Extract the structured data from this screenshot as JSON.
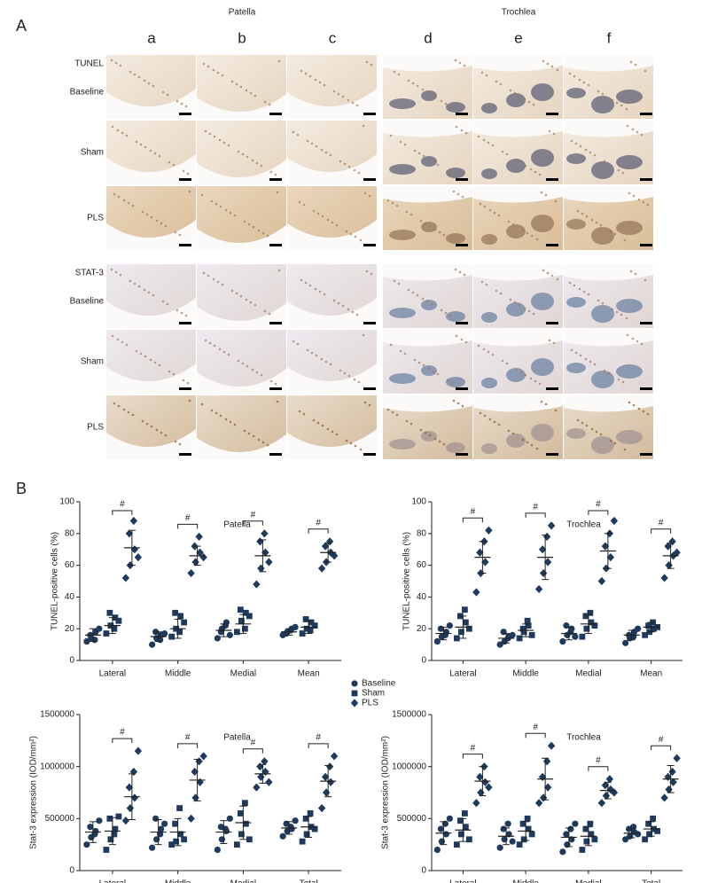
{
  "panel_a": {
    "label": "A",
    "groups": [
      "Patella",
      "Trochlea"
    ],
    "columns": [
      "a",
      "b",
      "c",
      "d",
      "e",
      "f"
    ],
    "stains": [
      {
        "name": "TUNEL",
        "rows": [
          "Baseline",
          "Sham",
          "PLS"
        ]
      },
      {
        "name": "STAT-3",
        "rows": [
          "Baseline",
          "Sham",
          "PLS"
        ]
      }
    ]
  },
  "panel_b": {
    "label": "B"
  },
  "chart_data": [
    {
      "type": "dot",
      "title": "Patella",
      "y_label": "TUNEL-positive cells (%)",
      "categories": [
        "Lateral",
        "Middle",
        "Medial",
        "Mean"
      ],
      "ylim": [
        0,
        100
      ],
      "yticks": [
        0,
        20,
        40,
        60,
        80,
        100
      ],
      "annotations": [
        "#",
        "#",
        "#",
        "#"
      ],
      "series": [
        {
          "name": "Baseline",
          "marker": "circle",
          "color": "#1e3a5c",
          "values": [
            [
              12,
              14,
              18,
              16,
              13,
              20
            ],
            [
              10,
              14,
              16,
              18,
              13,
              17
            ],
            [
              14,
              20,
              24,
              18,
              22,
              16
            ],
            [
              16,
              18,
              20,
              17,
              19,
              21
            ]
          ],
          "mean": [
            16,
            15,
            19,
            18
          ],
          "sd": [
            4,
            3,
            4,
            2
          ]
        },
        {
          "name": "Sham",
          "marker": "square",
          "color": "#1e3a5c",
          "values": [
            [
              17,
              22,
              27,
              30,
              20,
              25
            ],
            [
              15,
              20,
              28,
              30,
              18,
              24
            ],
            [
              18,
              25,
              30,
              32,
              20,
              28
            ],
            [
              17,
              20,
              24,
              26,
              19,
              22
            ]
          ],
          "mean": [
            22,
            20,
            23,
            21
          ],
          "sd": [
            5,
            6,
            6,
            4
          ]
        },
        {
          "name": "PLS",
          "marker": "diamond",
          "color": "#1e3a5c",
          "values": [
            [
              52,
              60,
              70,
              80,
              88,
              65
            ],
            [
              55,
              62,
              68,
              72,
              78,
              65
            ],
            [
              48,
              58,
              68,
              75,
              80,
              62
            ],
            [
              58,
              62,
              68,
              72,
              75,
              66
            ]
          ],
          "mean": [
            71,
            66,
            66,
            68
          ],
          "sd": [
            11,
            6,
            10,
            6
          ]
        }
      ]
    },
    {
      "type": "dot",
      "title": "Trochlea",
      "y_label": "TUNEL-positive cells (%)",
      "categories": [
        "Lateral",
        "Middle",
        "Medial",
        "Mean"
      ],
      "ylim": [
        0,
        100
      ],
      "yticks": [
        0,
        20,
        40,
        60,
        80,
        100
      ],
      "annotations": [
        "#",
        "#",
        "#",
        "#"
      ],
      "series": [
        {
          "name": "Baseline",
          "marker": "circle",
          "color": "#1e3a5c",
          "values": [
            [
              12,
              15,
              18,
              20,
              16,
              22
            ],
            [
              10,
              12,
              15,
              18,
              14,
              16
            ],
            [
              12,
              16,
              20,
              22,
              18,
              15
            ],
            [
              11,
              14,
              18,
              16,
              15,
              20
            ]
          ],
          "mean": [
            17,
            14,
            17,
            16
          ],
          "sd": [
            4,
            3,
            4,
            3
          ]
        },
        {
          "name": "Sham",
          "marker": "square",
          "color": "#1e3a5c",
          "values": [
            [
              14,
              18,
              24,
              28,
              32,
              20
            ],
            [
              14,
              18,
              22,
              20,
              25,
              16
            ],
            [
              15,
              20,
              24,
              28,
              30,
              22
            ],
            [
              16,
              18,
              20,
              22,
              24,
              21
            ]
          ],
          "mean": [
            21,
            19,
            23,
            21
          ],
          "sd": [
            7,
            4,
            6,
            3
          ]
        },
        {
          "name": "PLS",
          "marker": "diamond",
          "color": "#1e3a5c",
          "values": [
            [
              43,
              55,
              62,
              68,
              75,
              82
            ],
            [
              45,
              55,
              62,
              70,
              78,
              85
            ],
            [
              50,
              58,
              65,
              72,
              80,
              88
            ],
            [
              52,
              60,
              66,
              72,
              75,
              68
            ]
          ],
          "mean": [
            65,
            65,
            69,
            66
          ],
          "sd": [
            10,
            14,
            11,
            8
          ]
        }
      ]
    },
    {
      "type": "dot",
      "title": "Patella",
      "y_label": "Stat-3 expression (IOD/mm²)",
      "categories": [
        "Lateral",
        "Middle",
        "Medial",
        "Total"
      ],
      "ylim": [
        0,
        1500000
      ],
      "yticks": [
        0,
        500000,
        1000000,
        1500000
      ],
      "annotations": [
        "#",
        "#",
        "#",
        "#"
      ],
      "series": [
        {
          "name": "Baseline",
          "marker": "circle",
          "color": "#1e3a5c",
          "values": [
            [
              250000,
              320000,
              380000,
              420000,
              350000,
              480000
            ],
            [
              220000,
              300000,
              400000,
              500000,
              350000,
              450000
            ],
            [
              200000,
              300000,
              380000,
              420000,
              400000,
              500000
            ],
            [
              330000,
              380000,
              400000,
              450000,
              420000,
              480000
            ]
          ],
          "mean": [
            370000,
            370000,
            370000,
            410000
          ],
          "sd": [
            100000,
            120000,
            110000,
            60000
          ]
        },
        {
          "name": "Sham",
          "marker": "square",
          "color": "#1e3a5c",
          "values": [
            [
              200000,
              300000,
              400000,
              500000,
              350000,
              520000
            ],
            [
              250000,
              280000,
              350000,
              450000,
              600000,
              300000
            ],
            [
              250000,
              350000,
              450000,
              550000,
              650000,
              300000
            ],
            [
              280000,
              350000,
              420000,
              500000,
              550000,
              400000
            ]
          ],
          "mean": [
            380000,
            370000,
            460000,
            420000
          ],
          "sd": [
            130000,
            130000,
            160000,
            100000
          ]
        },
        {
          "name": "PLS",
          "marker": "diamond",
          "color": "#1e3a5c",
          "values": [
            [
              480000,
              600000,
              700000,
              800000,
              950000,
              1150000
            ],
            [
              500000,
              700000,
              850000,
              950000,
              1050000,
              1100000
            ],
            [
              800000,
              900000,
              950000,
              1000000,
              1050000,
              850000
            ],
            [
              600000,
              750000,
              850000,
              900000,
              1000000,
              1100000
            ]
          ],
          "mean": [
            710000,
            870000,
            930000,
            860000
          ],
          "sd": [
            220000,
            200000,
            90000,
            150000
          ]
        }
      ]
    },
    {
      "type": "dot",
      "title": "Trochlea",
      "y_label": "Stat-3 expression (IOD/mm²)",
      "categories": [
        "Lateral",
        "Middle",
        "Medial",
        "Total"
      ],
      "ylim": [
        0,
        1500000
      ],
      "yticks": [
        0,
        500000,
        1000000,
        1500000
      ],
      "annotations": [
        "#",
        "#",
        "#",
        "#"
      ],
      "series": [
        {
          "name": "Baseline",
          "marker": "circle",
          "color": "#1e3a5c",
          "values": [
            [
              200000,
              280000,
              350000,
              400000,
              450000,
              500000
            ],
            [
              220000,
              300000,
              350000,
              400000,
              450000,
              280000
            ],
            [
              180000,
              250000,
              300000,
              350000,
              400000,
              450000
            ],
            [
              300000,
              330000,
              370000,
              400000,
              420000,
              350000
            ]
          ],
          "mean": [
            360000,
            330000,
            320000,
            360000
          ],
          "sd": [
            110000,
            80000,
            90000,
            45000
          ]
        },
        {
          "name": "Sham",
          "marker": "square",
          "color": "#1e3a5c",
          "values": [
            [
              250000,
              350000,
              420000,
              480000,
              550000,
              300000
            ],
            [
              250000,
              300000,
              400000,
              450000,
              500000,
              350000
            ],
            [
              200000,
              280000,
              350000,
              400000,
              450000,
              300000
            ],
            [
              300000,
              350000,
              400000,
              450000,
              500000,
              380000
            ]
          ],
          "mean": [
            390000,
            380000,
            330000,
            400000
          ],
          "sd": [
            110000,
            90000,
            90000,
            70000
          ]
        },
        {
          "name": "PLS",
          "marker": "diamond",
          "color": "#1e3a5c",
          "values": [
            [
              650000,
              750000,
              850000,
              900000,
              1000000,
              800000
            ],
            [
              650000,
              700000,
              800000,
              900000,
              1050000,
              1200000
            ],
            [
              650000,
              720000,
              780000,
              820000,
              880000,
              750000
            ],
            [
              700000,
              780000,
              850000,
              900000,
              950000,
              1080000
            ]
          ],
          "mean": [
            860000,
            880000,
            770000,
            880000
          ],
          "sd": [
            140000,
            200000,
            80000,
            130000
          ]
        }
      ]
    }
  ]
}
